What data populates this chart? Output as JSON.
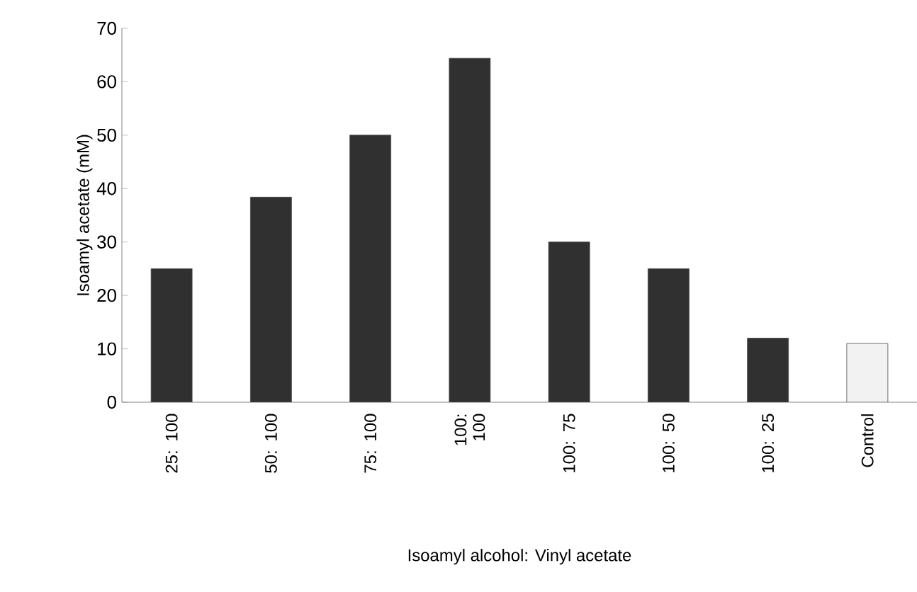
{
  "chart_data": {
    "type": "bar",
    "xlabel": "Isoamyl alcohol: Vinyl acetate",
    "ylabel": "Isoamyl acetate (mM)",
    "categories": [
      "25: 100",
      "50: 100",
      "75: 100",
      "100: 100",
      "100: 75",
      "100: 50",
      "100: 25",
      "Control"
    ],
    "values": [
      25,
      38.4,
      50,
      64.4,
      30,
      25,
      12,
      11
    ],
    "colors": [
      "#303030",
      "#303030",
      "#303030",
      "#303030",
      "#303030",
      "#303030",
      "#303030",
      "#f2f2f2"
    ],
    "ylim": [
      0,
      70
    ],
    "yticks": [
      0,
      10,
      20,
      30,
      40,
      50,
      60,
      70
    ],
    "grid": false
  }
}
